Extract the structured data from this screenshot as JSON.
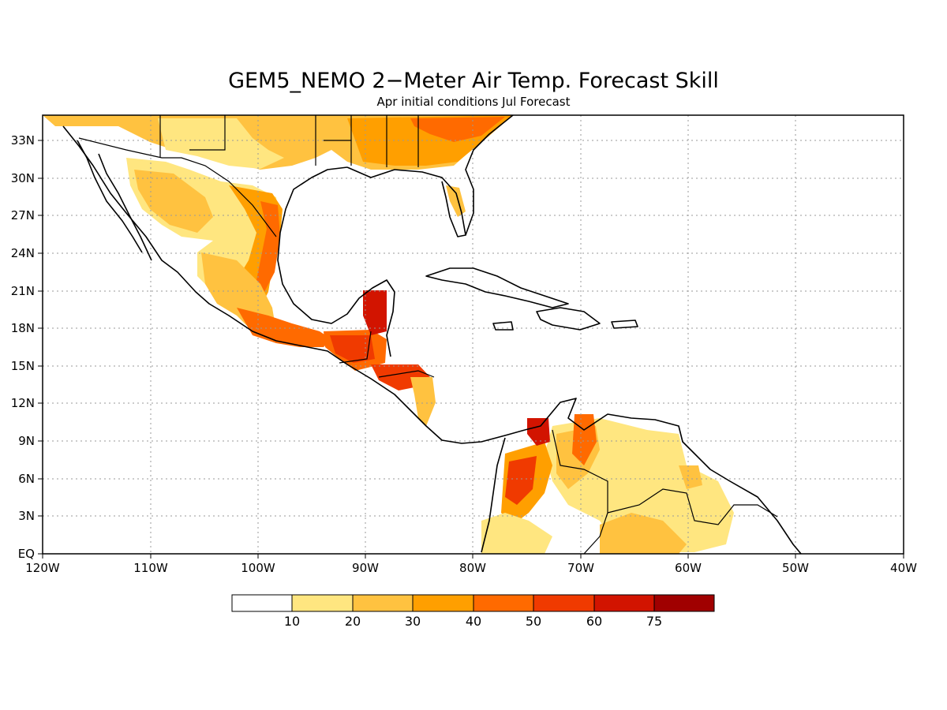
{
  "title": "GEM5_NEMO 2−Meter Air Temp. Forecast Skill",
  "subtitle": "Apr initial conditions  Jul Forecast",
  "lon_ticks": [
    "120W",
    "110W",
    "100W",
    "90W",
    "80W",
    "70W",
    "60W",
    "50W",
    "40W"
  ],
  "lat_ticks": [
    "EQ",
    "3N",
    "6N",
    "9N",
    "12N",
    "15N",
    "18N",
    "21N",
    "24N",
    "27N",
    "30N",
    "33N"
  ],
  "colorbar": {
    "labels": [
      "10",
      "20",
      "30",
      "40",
      "50",
      "60",
      "75"
    ],
    "colors": [
      "#ffffff",
      "#ffe680",
      "#ffc240",
      "#ff9f00",
      "#ff6a00",
      "#f03a00",
      "#d21400",
      "#a00000"
    ]
  },
  "map": {
    "lon_range": [
      -120,
      -40
    ],
    "lat_range": [
      0,
      35
    ],
    "grid": true,
    "field": "skill (%)"
  }
}
